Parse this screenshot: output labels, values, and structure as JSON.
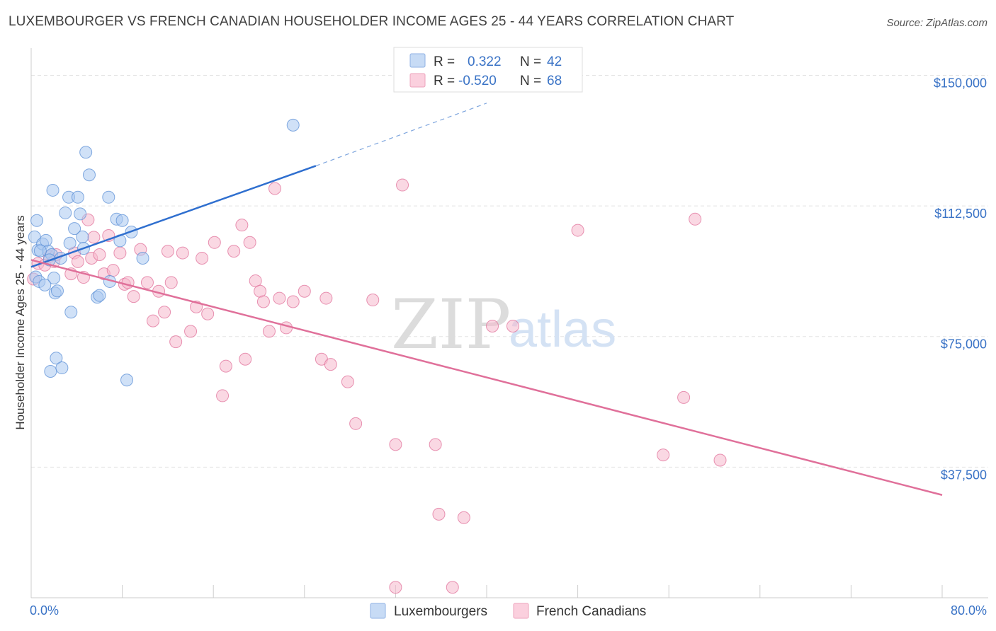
{
  "header": {
    "title": "LUXEMBOURGER VS FRENCH CANADIAN HOUSEHOLDER INCOME AGES 25 - 44 YEARS CORRELATION CHART",
    "source": "Source: ZipAtlas.com"
  },
  "watermark": {
    "zip": "ZIP",
    "atlas": "atlas"
  },
  "stats_legend": {
    "rows": [
      {
        "r_label": "R =",
        "r_value": "0.322",
        "n_label": "N =",
        "n_value": "42",
        "color": "#a9c8f0"
      },
      {
        "r_label": "R =",
        "r_value": "-0.520",
        "n_label": "N =",
        "n_value": "68",
        "color": "#f6b8cc"
      }
    ]
  },
  "bottom_legend": {
    "items": [
      {
        "label": "Luxembourgers",
        "color": "#a9c8f0"
      },
      {
        "label": "French Canadians",
        "color": "#f6b8cc"
      }
    ]
  },
  "chart_data": {
    "type": "scatter",
    "title": "LUXEMBOURGER VS FRENCH CANADIAN HOUSEHOLDER INCOME AGES 25 - 44 YEARS CORRELATION CHART",
    "xlabel": "",
    "ylabel": "Householder Income Ages 25 - 44 years",
    "xlim": [
      0,
      80
    ],
    "ylim": [
      0,
      157000
    ],
    "x_tick_labels": [
      "0.0%",
      "80.0%"
    ],
    "y_ticks": [
      37500,
      75000,
      112500,
      150000
    ],
    "y_tick_labels": [
      "$37,500",
      "$75,000",
      "$112,500",
      "$150,000"
    ],
    "grid": true,
    "series": [
      {
        "name": "Luxembourgers",
        "color": "#5b8fd6",
        "fill": "#a9c8f0",
        "r": 0.322,
        "n": 42,
        "trend": {
          "x0": 0,
          "y0": 95000,
          "x1": 25,
          "y1": 124000,
          "dash_x1": 40,
          "dash_y1": 142000
        },
        "points": [
          [
            0.3,
            103600
          ],
          [
            0.5,
            108300
          ],
          [
            0.4,
            92100
          ],
          [
            0.6,
            99800
          ],
          [
            0.7,
            90800
          ],
          [
            1.0,
            101600
          ],
          [
            1.3,
            102600
          ],
          [
            1.5,
            99500
          ],
          [
            1.7,
            65000
          ],
          [
            1.8,
            98500
          ],
          [
            1.9,
            117000
          ],
          [
            2.0,
            91800
          ],
          [
            2.1,
            87500
          ],
          [
            2.2,
            68800
          ],
          [
            2.3,
            88100
          ],
          [
            2.7,
            66000
          ],
          [
            3.0,
            110500
          ],
          [
            3.3,
            115000
          ],
          [
            3.4,
            101800
          ],
          [
            3.5,
            82000
          ],
          [
            3.8,
            106000
          ],
          [
            4.1,
            115000
          ],
          [
            4.3,
            110200
          ],
          [
            4.5,
            103600
          ],
          [
            4.6,
            100300
          ],
          [
            4.8,
            127900
          ],
          [
            5.1,
            121400
          ],
          [
            5.8,
            86300
          ],
          [
            6.0,
            86800
          ],
          [
            6.8,
            115000
          ],
          [
            6.9,
            90800
          ],
          [
            7.5,
            108700
          ],
          [
            7.8,
            102500
          ],
          [
            8.0,
            108300
          ],
          [
            8.4,
            62500
          ],
          [
            8.8,
            105000
          ],
          [
            9.8,
            97500
          ],
          [
            23.0,
            135700
          ],
          [
            0.8,
            99600
          ],
          [
            1.6,
            97000
          ],
          [
            1.2,
            89800
          ],
          [
            2.6,
            97500
          ]
        ]
      },
      {
        "name": "French Canadians",
        "color": "#e0709a",
        "fill": "#f6b8cc",
        "r": -0.52,
        "n": 68,
        "trend": {
          "x0": 0,
          "y0": 97000,
          "x1": 80,
          "y1": 29500
        },
        "points": [
          [
            0.2,
            91500
          ],
          [
            0.6,
            96000
          ],
          [
            1.2,
            95500
          ],
          [
            1.6,
            98000
          ],
          [
            2.0,
            96500
          ],
          [
            2.2,
            98500
          ],
          [
            3.5,
            93000
          ],
          [
            3.8,
            99000
          ],
          [
            4.1,
            96500
          ],
          [
            4.6,
            92000
          ],
          [
            5.0,
            108500
          ],
          [
            5.3,
            97500
          ],
          [
            5.5,
            103500
          ],
          [
            6.0,
            98500
          ],
          [
            6.4,
            93000
          ],
          [
            6.8,
            104000
          ],
          [
            7.2,
            94000
          ],
          [
            7.8,
            99000
          ],
          [
            8.2,
            90000
          ],
          [
            8.5,
            90500
          ],
          [
            9.0,
            86500
          ],
          [
            9.6,
            100000
          ],
          [
            10.2,
            90500
          ],
          [
            10.7,
            79500
          ],
          [
            11.2,
            88000
          ],
          [
            11.7,
            82000
          ],
          [
            12.0,
            99500
          ],
          [
            12.3,
            90500
          ],
          [
            12.7,
            73500
          ],
          [
            13.3,
            99000
          ],
          [
            14.0,
            76500
          ],
          [
            14.5,
            83500
          ],
          [
            15.0,
            97500
          ],
          [
            15.5,
            81500
          ],
          [
            16.1,
            102000
          ],
          [
            16.8,
            58000
          ],
          [
            17.1,
            66500
          ],
          [
            17.8,
            99500
          ],
          [
            18.5,
            107000
          ],
          [
            18.8,
            68500
          ],
          [
            19.2,
            102000
          ],
          [
            19.7,
            91000
          ],
          [
            20.1,
            88000
          ],
          [
            20.4,
            85000
          ],
          [
            20.9,
            76500
          ],
          [
            21.4,
            117500
          ],
          [
            21.8,
            86000
          ],
          [
            22.4,
            77500
          ],
          [
            23.0,
            85000
          ],
          [
            24.0,
            88000
          ],
          [
            25.5,
            68500
          ],
          [
            25.9,
            86000
          ],
          [
            26.3,
            67000
          ],
          [
            27.8,
            62000
          ],
          [
            28.5,
            50000
          ],
          [
            30.0,
            85500
          ],
          [
            32.0,
            44000
          ],
          [
            32.6,
            118500
          ],
          [
            35.5,
            44000
          ],
          [
            35.8,
            24000
          ],
          [
            38.0,
            23000
          ],
          [
            40.5,
            78000
          ],
          [
            42.3,
            78000
          ],
          [
            48.0,
            105500
          ],
          [
            55.5,
            41000
          ],
          [
            57.3,
            57500
          ],
          [
            58.3,
            108700
          ],
          [
            60.5,
            39500
          ]
        ]
      }
    ],
    "extra_points_below_axis_note": "two pink points near $3,000",
    "extra_points": [
      [
        32.0,
        3000
      ],
      [
        37.0,
        3000
      ]
    ]
  }
}
